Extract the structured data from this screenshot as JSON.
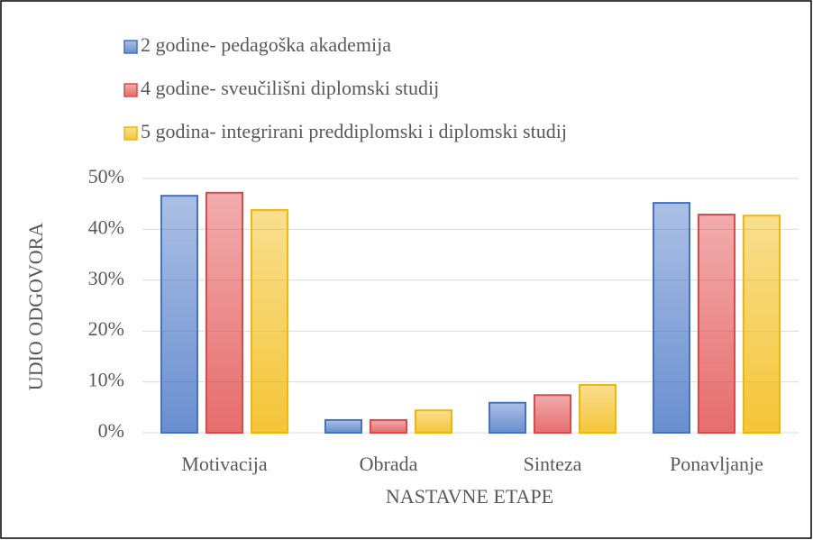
{
  "chart_data": {
    "type": "bar",
    "categories": [
      "Motivacija",
      "Obrada",
      "Sinteza",
      "Ponavljanje"
    ],
    "series": [
      {
        "name": "2 godine- pedagoška akademija",
        "color": "#4472c4",
        "values": [
          46.6,
          2.5,
          5.9,
          45.2
        ]
      },
      {
        "name": "4 godine- sveučilišni diplomski studij",
        "color": "#e04848",
        "values": [
          47.2,
          2.5,
          7.4,
          42.9
        ]
      },
      {
        "name": "5 godina- integrirani preddiplomski i diplomski studij",
        "color": "#f2b705",
        "values": [
          43.8,
          4.4,
          9.4,
          42.7
        ]
      }
    ],
    "xlabel": "NASTAVNE ETAPE",
    "ylabel": "UDIO ODGOVORA",
    "ylim": [
      0,
      50
    ],
    "yticks": [
      {
        "value": 0,
        "label": "0%"
      },
      {
        "value": 10,
        "label": "10%"
      },
      {
        "value": 20,
        "label": "20%"
      },
      {
        "value": 30,
        "label": "30%"
      },
      {
        "value": 40,
        "label": "40%"
      },
      {
        "value": 50,
        "label": "50%"
      }
    ],
    "grid": true,
    "legend": "top-left"
  }
}
